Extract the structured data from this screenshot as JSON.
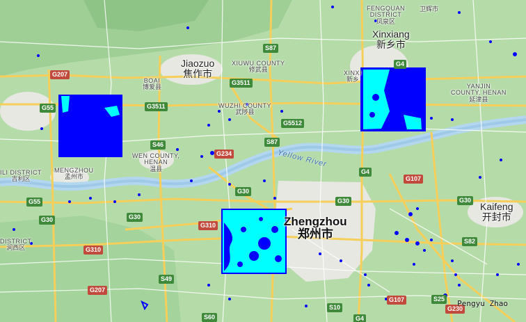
{
  "cities": [
    {
      "en": "Jiaozuo",
      "zh": "焦作市",
      "kind": "city"
    },
    {
      "en": "Xinxiang",
      "zh": "新乡市",
      "kind": "city"
    },
    {
      "en": "Kaifeng",
      "zh": "开封市",
      "kind": "city"
    },
    {
      "en": "Zhengzhou",
      "zh": "郑州市",
      "kind": "big"
    }
  ],
  "areas": [
    {
      "en": "FENGQUAN",
      "en2": "DISTRICT",
      "zh": "凤泉区"
    },
    {
      "en": "XIUWU COUNTY",
      "zh": "修武县"
    },
    {
      "en": "BOAI",
      "zh": "博爱县"
    },
    {
      "en": "WUZHI COUNTY",
      "zh": "武陟县"
    },
    {
      "en": "WEN COUNTY,",
      "en2": "HENAN",
      "zh": "温县"
    },
    {
      "en": "MENGZHOU",
      "zh": "孟州市"
    },
    {
      "en": "YANJIN",
      "en2": "COUNTY, HENAN",
      "zh": "延津县"
    },
    {
      "en": "ILI DISTRICT",
      "zh": "吉利区"
    },
    {
      "en": "XINXI",
      "zh": "新乡"
    },
    {
      "en": "DISTRICT",
      "zh": "涧西区"
    }
  ],
  "top_label": {
    "zh": "卫辉市"
  },
  "roads": [
    "G207",
    "S87",
    "G55",
    "G3511",
    "G3511",
    "G5512",
    "S87",
    "G234",
    "S46",
    "G4",
    "G4",
    "G107",
    "G55",
    "G30",
    "G30",
    "G30",
    "G30",
    "G310",
    "G310",
    "G30",
    "S82",
    "S49",
    "G207",
    "S60",
    "S10",
    "G4",
    "G107",
    "S25",
    "G230"
  ],
  "river": {
    "name": "Yellow River"
  },
  "credit": "Pengyu Zhao",
  "colors": {
    "land": "#a9d6a4",
    "water": "#b3d7ee",
    "urban": "#e8ebe4",
    "highway": "#f6cf5a",
    "flood_blue": "#0000ff",
    "cyan": "#00ffff"
  }
}
